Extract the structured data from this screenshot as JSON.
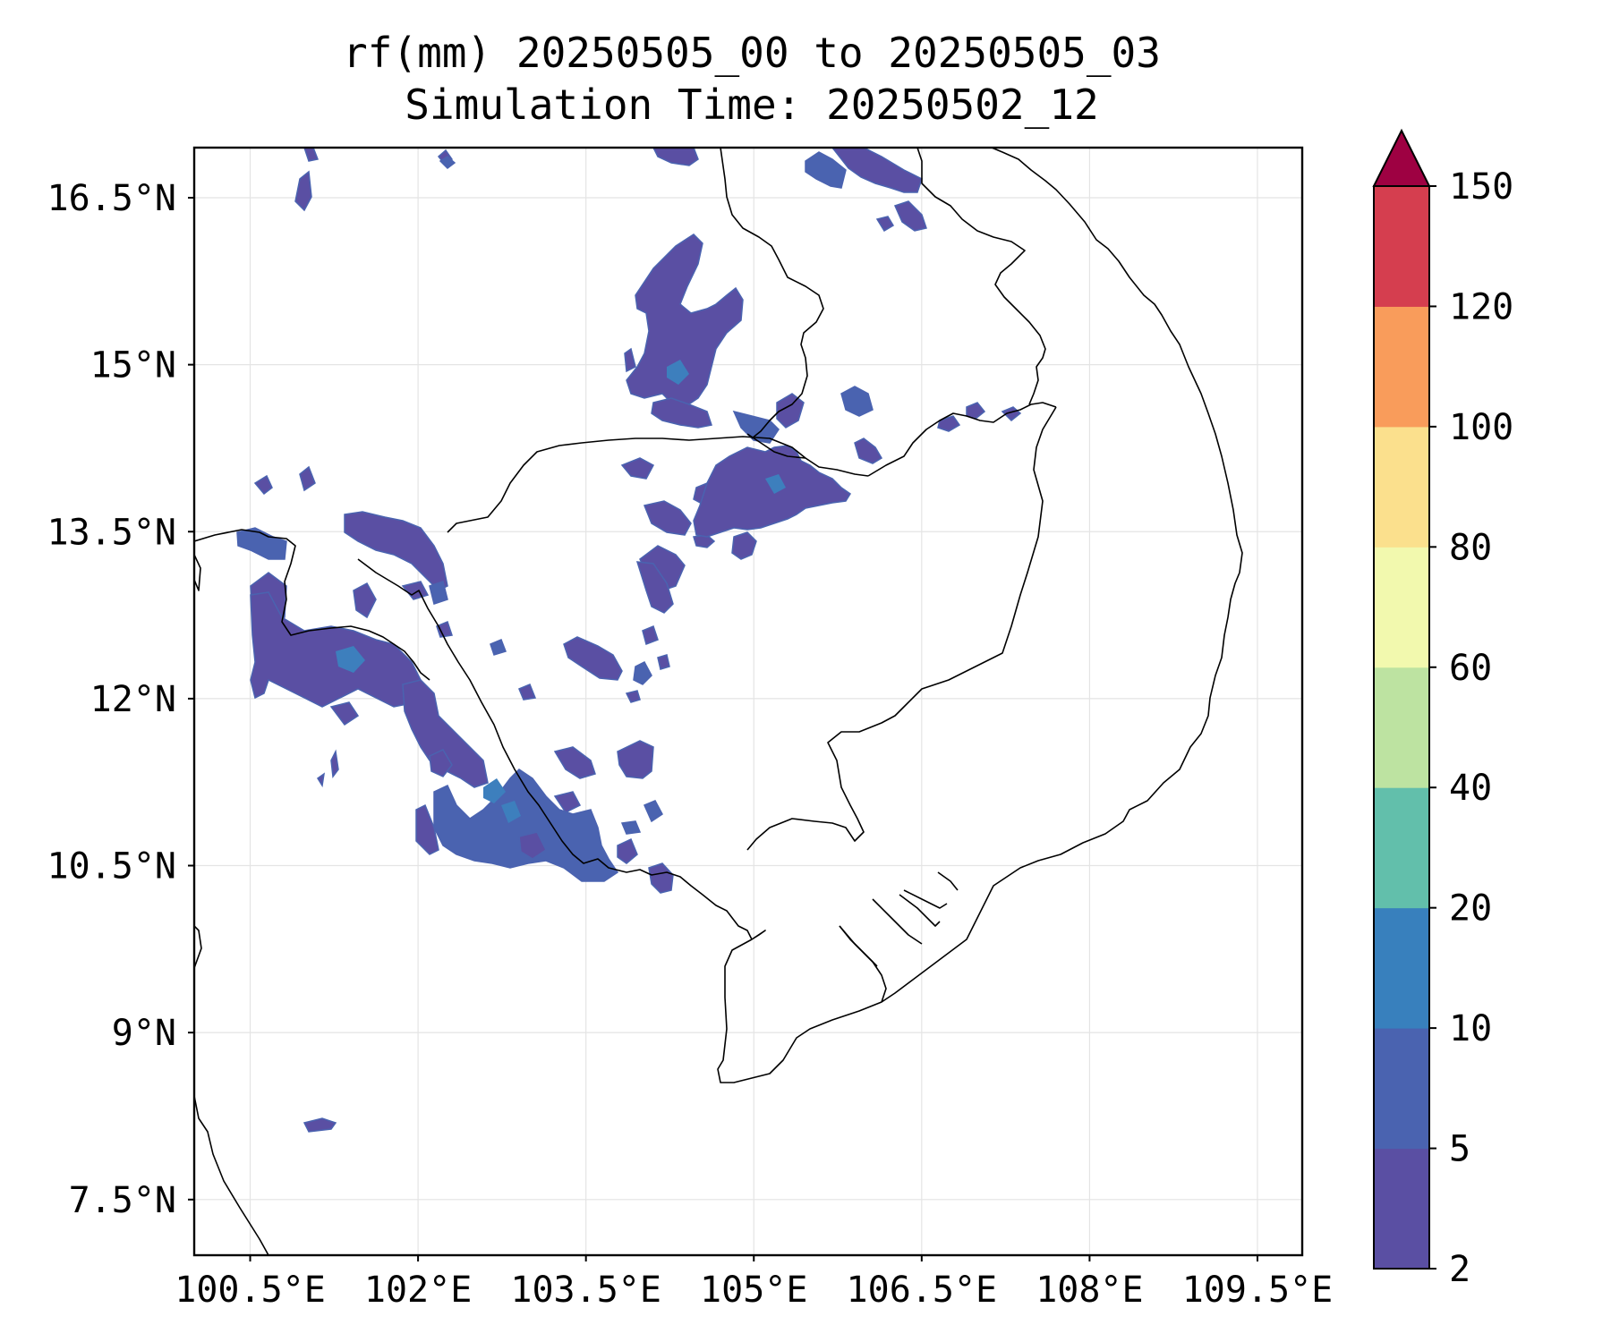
{
  "title": {
    "line1": "rf(mm) 20250505_00 to 20250505_03",
    "line2": "Simulation Time: 20250502_12"
  },
  "map": {
    "lon_range": [
      100.0,
      109.9
    ],
    "lat_range": [
      7.0,
      16.95
    ],
    "lon_ticks": [
      {
        "value": 100.5,
        "label": "100.5°E"
      },
      {
        "value": 102.0,
        "label": "102°E"
      },
      {
        "value": 103.5,
        "label": "103.5°E"
      },
      {
        "value": 105.0,
        "label": "105°E"
      },
      {
        "value": 106.5,
        "label": "106.5°E"
      },
      {
        "value": 108.0,
        "label": "108°E"
      },
      {
        "value": 109.5,
        "label": "109.5°E"
      }
    ],
    "lat_ticks": [
      {
        "value": 16.5,
        "label": "16.5°N"
      },
      {
        "value": 15.0,
        "label": "15°N"
      },
      {
        "value": 13.5,
        "label": "13.5°N"
      },
      {
        "value": 12.0,
        "label": "12°N"
      },
      {
        "value": 10.5,
        "label": "10.5°N"
      },
      {
        "value": 9.0,
        "label": "9°N"
      },
      {
        "value": 7.5,
        "label": "7.5°N"
      }
    ],
    "grid": true,
    "field_color": "#5a4fa3",
    "field_color_2": "#4a63b0",
    "field_color_3": "#3d7fbd"
  },
  "colorbar": {
    "levels": [
      {
        "value": 2,
        "label": "2"
      },
      {
        "value": 5,
        "label": "5"
      },
      {
        "value": 10,
        "label": "10"
      },
      {
        "value": 20,
        "label": "20"
      },
      {
        "value": 40,
        "label": "40"
      },
      {
        "value": 60,
        "label": "60"
      },
      {
        "value": 80,
        "label": "80"
      },
      {
        "value": 100,
        "label": "100"
      },
      {
        "value": 120,
        "label": "120"
      },
      {
        "value": 150,
        "label": "150"
      }
    ],
    "colors": [
      "#5a4fa3",
      "#4a63b0",
      "#3880bd",
      "#62bfab",
      "#bde3a1",
      "#f2f9ae",
      "#fbe08d",
      "#f99c5b",
      "#d53e4f"
    ],
    "extend_color": "#9e0142",
    "extend": "max"
  }
}
